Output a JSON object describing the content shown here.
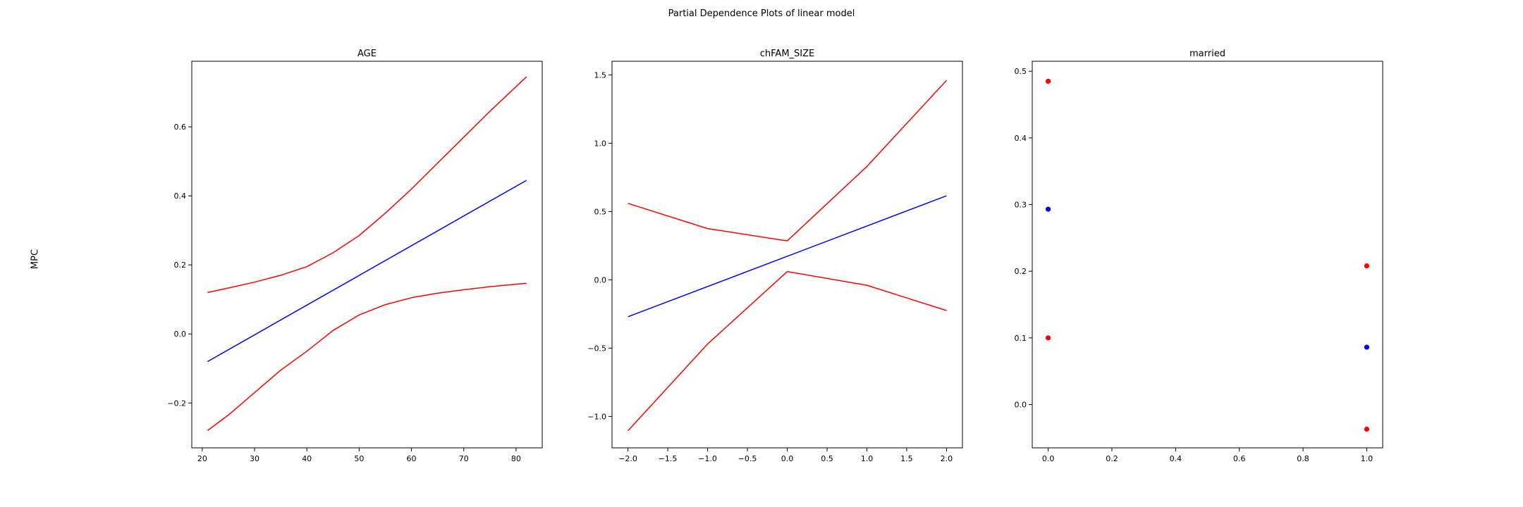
{
  "figure": {
    "title": "Partial Dependence Plots of linear model",
    "ylabel": "MPC",
    "colors": {
      "estimate": "#0000ff",
      "bounds": "#ff0000"
    }
  },
  "chart_data": [
    {
      "type": "line",
      "title": "AGE",
      "xlim": [
        18,
        85
      ],
      "ylim": [
        -0.33,
        0.79
      ],
      "xticks": [
        20,
        30,
        40,
        50,
        60,
        70,
        80
      ],
      "yticks": [
        -0.2,
        0.0,
        0.2,
        0.4,
        0.6
      ],
      "series": [
        {
          "role": "estimate",
          "color": "#0000ff",
          "x": [
            21,
            82
          ],
          "y": [
            -0.08,
            0.445
          ]
        },
        {
          "role": "upper",
          "color": "#ff0000",
          "x": [
            21,
            25,
            30,
            35,
            40,
            45,
            50,
            55,
            60,
            65,
            70,
            75,
            82
          ],
          "y": [
            0.12,
            0.133,
            0.15,
            0.17,
            0.195,
            0.235,
            0.285,
            0.35,
            0.42,
            0.495,
            0.57,
            0.645,
            0.745
          ]
        },
        {
          "role": "lower",
          "color": "#ff0000",
          "x": [
            21,
            25,
            30,
            35,
            40,
            45,
            50,
            55,
            60,
            65,
            70,
            75,
            82
          ],
          "y": [
            -0.28,
            -0.235,
            -0.17,
            -0.105,
            -0.05,
            0.01,
            0.055,
            0.085,
            0.105,
            0.118,
            0.128,
            0.137,
            0.147
          ]
        }
      ]
    },
    {
      "type": "line",
      "title": "chFAM_SIZE",
      "xlim": [
        -2.2,
        2.2
      ],
      "ylim": [
        -1.23,
        1.6
      ],
      "xticks": [
        -2.0,
        -1.5,
        -1.0,
        -0.5,
        0.0,
        0.5,
        1.0,
        1.5,
        2.0
      ],
      "ytick_values": [
        -1.0,
        -0.5,
        0.0,
        0.5,
        1.0,
        1.5
      ],
      "yticks": [
        "−1.0",
        "−0.5",
        "0.0",
        "0.5",
        "1.0",
        "1.5"
      ],
      "series": [
        {
          "role": "estimate",
          "color": "#0000ff",
          "x": [
            -2,
            2
          ],
          "y": [
            -0.27,
            0.615
          ]
        },
        {
          "role": "upper",
          "color": "#ff0000",
          "x": [
            -2,
            -1,
            0,
            1,
            2
          ],
          "y": [
            0.56,
            0.375,
            0.285,
            0.83,
            1.46
          ]
        },
        {
          "role": "lower",
          "color": "#ff0000",
          "x": [
            -2,
            -1,
            0,
            1,
            2
          ],
          "y": [
            -1.105,
            -0.47,
            0.06,
            -0.04,
            -0.225
          ]
        }
      ]
    },
    {
      "type": "scatter",
      "title": "married",
      "xlim": [
        -0.05,
        1.05
      ],
      "ylim": [
        -0.065,
        0.515
      ],
      "xticks": [
        0.0,
        0.2,
        0.4,
        0.6,
        0.8,
        1.0
      ],
      "yticks": [
        0.0,
        0.1,
        0.2,
        0.3,
        0.4,
        0.5
      ],
      "series": [
        {
          "role": "estimate",
          "color": "#0000ff",
          "x": [
            0,
            1
          ],
          "y": [
            0.293,
            0.086
          ]
        },
        {
          "role": "upper",
          "color": "#ff0000",
          "x": [
            0,
            1
          ],
          "y": [
            0.485,
            0.208
          ]
        },
        {
          "role": "lower",
          "color": "#ff0000",
          "x": [
            0,
            1
          ],
          "y": [
            0.1,
            -0.037
          ]
        }
      ]
    }
  ]
}
